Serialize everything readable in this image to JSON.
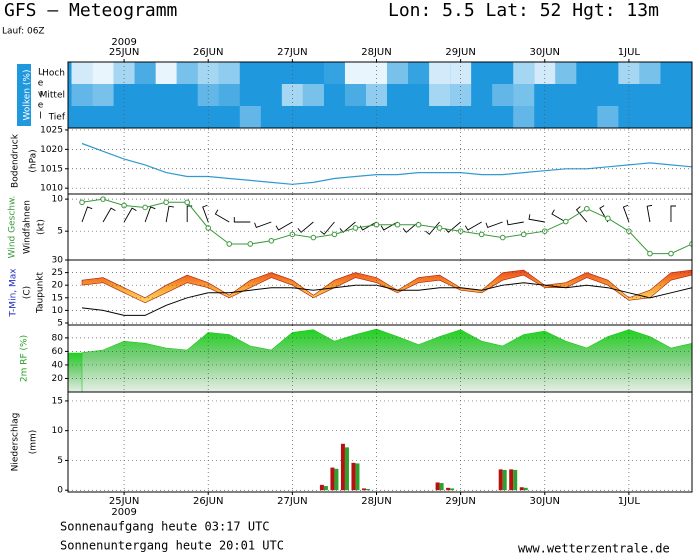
{
  "header": {
    "title": "GFS – Meteogramm",
    "location": "Lon: 5.5 Lat: 52 Hgt: 13m",
    "run": "Lauf: 06Z"
  },
  "footer": {
    "sunrise": "Sonnenaufgang heute 03:17 UTC",
    "sunset": "Sonnenuntergang heute 20:01 UTC",
    "source": "www.wetterzentrale.de"
  },
  "chart_data": [
    {
      "type": "heatmap",
      "ylabel": "Wolken (%)",
      "level_label": "Level",
      "year": "2009",
      "xlim": [
        8,
        186
      ],
      "xticks": [
        {
          "value": 24,
          "label": "25JUN"
        },
        {
          "value": 48,
          "label": "26JUN"
        },
        {
          "value": 72,
          "label": "27JUN"
        },
        {
          "value": 96,
          "label": "28JUN"
        },
        {
          "value": 120,
          "label": "29JUN"
        },
        {
          "value": 144,
          "label": "30JUN"
        },
        {
          "value": 168,
          "label": "1JUL"
        }
      ],
      "x": [
        12,
        18,
        24,
        30,
        36,
        42,
        48,
        54,
        60,
        66,
        72,
        78,
        84,
        90,
        96,
        102,
        108,
        114,
        120,
        126,
        132,
        138,
        144,
        150,
        156,
        162,
        168,
        174,
        180,
        186
      ],
      "color": "#ffffff",
      "background": "#1f98de",
      "series": [
        {
          "name": "Hoch",
          "values": [
            80,
            90,
            60,
            20,
            90,
            40,
            60,
            50,
            0,
            0,
            0,
            0,
            10,
            90,
            90,
            40,
            10,
            80,
            80,
            0,
            0,
            60,
            80,
            40,
            0,
            0,
            60,
            40,
            0,
            0
          ]
        },
        {
          "name": "Mittel",
          "values": [
            30,
            40,
            0,
            0,
            0,
            0,
            30,
            20,
            0,
            0,
            60,
            40,
            0,
            20,
            50,
            0,
            0,
            60,
            50,
            0,
            30,
            40,
            0,
            0,
            0,
            0,
            0,
            0,
            0,
            0
          ]
        },
        {
          "name": "Tief",
          "values": [
            0,
            0,
            0,
            0,
            0,
            0,
            0,
            0,
            30,
            0,
            0,
            0,
            0,
            0,
            0,
            0,
            0,
            0,
            0,
            0,
            0,
            30,
            0,
            0,
            0,
            30,
            0,
            0,
            0,
            0
          ]
        }
      ]
    },
    {
      "type": "line",
      "ylabel": "Bodendruck",
      "yunit": "(hPa)",
      "color": "#2f9bd0",
      "xlim": [
        8,
        186
      ],
      "xticks": [
        24,
        48,
        72,
        96,
        120,
        144,
        168
      ],
      "ylim": [
        1008.5,
        1025.5
      ],
      "yticks": [
        1010,
        1015,
        1020,
        1025
      ],
      "x": [
        12,
        18,
        24,
        30,
        36,
        42,
        48,
        54,
        60,
        66,
        72,
        78,
        84,
        90,
        96,
        102,
        108,
        114,
        120,
        126,
        132,
        138,
        144,
        150,
        156,
        162,
        168,
        174,
        180,
        186
      ],
      "values": [
        1021.5,
        1019.5,
        1017.5,
        1016,
        1014,
        1013,
        1013,
        1012.5,
        1012,
        1011.5,
        1011,
        1011.5,
        1012.5,
        1013,
        1013.5,
        1013.5,
        1014,
        1014,
        1014,
        1013.5,
        1013.5,
        1014,
        1014.5,
        1015,
        1015,
        1015.5,
        1016,
        1016.5,
        1016,
        1015.5
      ]
    },
    {
      "type": "wind",
      "yunit": "(kt)",
      "xlim": [
        8,
        186
      ],
      "xticks": [
        24,
        48,
        72,
        96,
        120,
        144,
        168
      ],
      "ylim": [
        0.5,
        10.8
      ],
      "yticks": [
        5,
        10
      ],
      "x": [
        12,
        18,
        24,
        30,
        36,
        42,
        48,
        54,
        60,
        66,
        72,
        78,
        84,
        90,
        96,
        102,
        108,
        114,
        120,
        126,
        132,
        138,
        144,
        150,
        156,
        162,
        168,
        174,
        180,
        186
      ],
      "series": [
        {
          "name": "Wind Geschw.",
          "color": "#3a9a3a",
          "values": [
            9.5,
            10,
            9,
            8.7,
            9.5,
            9.5,
            5.5,
            3,
            3,
            3.5,
            4.5,
            4,
            4.5,
            5.5,
            6,
            6,
            6,
            5.5,
            5,
            4.5,
            4,
            4.5,
            5,
            6.5,
            8.5,
            7,
            5,
            1.5,
            1.5,
            3
          ]
        },
        {
          "name": "Windfahnen",
          "color": "#000000",
          "values": [
            20,
            30,
            30,
            20,
            10,
            0,
            340,
            300,
            270,
            250,
            240,
            230,
            220,
            230,
            240,
            240,
            230,
            220,
            230,
            240,
            250,
            260,
            280,
            300,
            320,
            330,
            340,
            350,
            0,
            10
          ]
        }
      ]
    },
    {
      "type": "band",
      "ylabel": "T-Min, Max",
      "yunit": "(C)",
      "xlim": [
        8,
        186
      ],
      "xticks": [
        24,
        48,
        72,
        96,
        120,
        144,
        168
      ],
      "ylim": [
        4.2,
        30
      ],
      "yticks": [
        5,
        10,
        15,
        20,
        25,
        30
      ],
      "x": [
        12,
        18,
        24,
        30,
        36,
        42,
        48,
        54,
        60,
        66,
        72,
        78,
        84,
        90,
        96,
        102,
        108,
        114,
        120,
        126,
        132,
        138,
        144,
        150,
        156,
        162,
        168,
        174,
        180,
        186
      ],
      "band": {
        "high": [
          22,
          23,
          19,
          15,
          20,
          24,
          21,
          16,
          22,
          25,
          22,
          16,
          22,
          25,
          23,
          18,
          23,
          24,
          19,
          18,
          25,
          26,
          20,
          21,
          25,
          22,
          15,
          18,
          25,
          26
        ],
        "low": [
          20,
          21,
          17,
          13,
          17,
          21,
          19,
          15,
          19,
          23,
          20,
          15,
          19,
          23,
          21,
          17,
          21,
          22,
          18,
          17,
          22,
          24,
          19,
          19,
          23,
          20,
          14,
          15,
          22,
          24
        ]
      },
      "series": [
        {
          "name": "Taupunkt",
          "color": "#000000",
          "values": [
            11,
            10,
            8,
            8,
            12,
            15,
            17,
            17,
            18,
            19,
            19,
            18,
            19,
            20,
            20,
            18,
            18,
            19,
            19,
            18,
            20,
            21,
            20,
            19,
            20,
            19,
            17,
            15,
            17,
            19
          ]
        }
      ]
    },
    {
      "type": "area",
      "ylabel": "2m RF (%)",
      "color": "#22c522",
      "xlim": [
        8,
        186
      ],
      "xticks": [
        24,
        48,
        72,
        96,
        120,
        144,
        168
      ],
      "ylim": [
        0,
        99
      ],
      "yticks": [
        20,
        40,
        60,
        80
      ],
      "x": [
        12,
        18,
        24,
        30,
        36,
        42,
        48,
        54,
        60,
        66,
        72,
        78,
        84,
        90,
        96,
        102,
        108,
        114,
        120,
        126,
        132,
        138,
        144,
        150,
        156,
        162,
        168,
        174,
        180,
        186
      ],
      "values": [
        58,
        62,
        75,
        72,
        65,
        62,
        88,
        85,
        68,
        62,
        88,
        92,
        75,
        85,
        93,
        82,
        70,
        82,
        92,
        75,
        68,
        85,
        90,
        75,
        65,
        82,
        92,
        82,
        65,
        72
      ]
    },
    {
      "type": "bar",
      "ylabel": "Niederschlag",
      "yunit": "(mm)",
      "year": "2009",
      "xlim": [
        8,
        186
      ],
      "xticks": [
        {
          "value": 24,
          "label": "25JUN"
        },
        {
          "value": 48,
          "label": "26JUN"
        },
        {
          "value": 72,
          "label": "27JUN"
        },
        {
          "value": 96,
          "label": "28JUN"
        },
        {
          "value": 120,
          "label": "29JUN"
        },
        {
          "value": 144,
          "label": "30JUN"
        },
        {
          "value": 168,
          "label": "1JUL"
        }
      ],
      "ylim": [
        -0.3,
        16.5
      ],
      "yticks": [
        0,
        5,
        10,
        15
      ],
      "x": [
        81,
        84,
        87,
        90,
        93,
        114,
        117,
        132,
        135,
        138
      ],
      "series": [
        {
          "color": "#b81010",
          "values": [
            0.9,
            3.8,
            7.8,
            4.6,
            0.3,
            1.3,
            0.4,
            3.5,
            3.5,
            0.5
          ]
        },
        {
          "color": "#2fa02f",
          "values": [
            0.7,
            3.6,
            7.2,
            4.5,
            0.2,
            1.2,
            0.3,
            3.4,
            3.4,
            0.4
          ]
        }
      ]
    }
  ]
}
